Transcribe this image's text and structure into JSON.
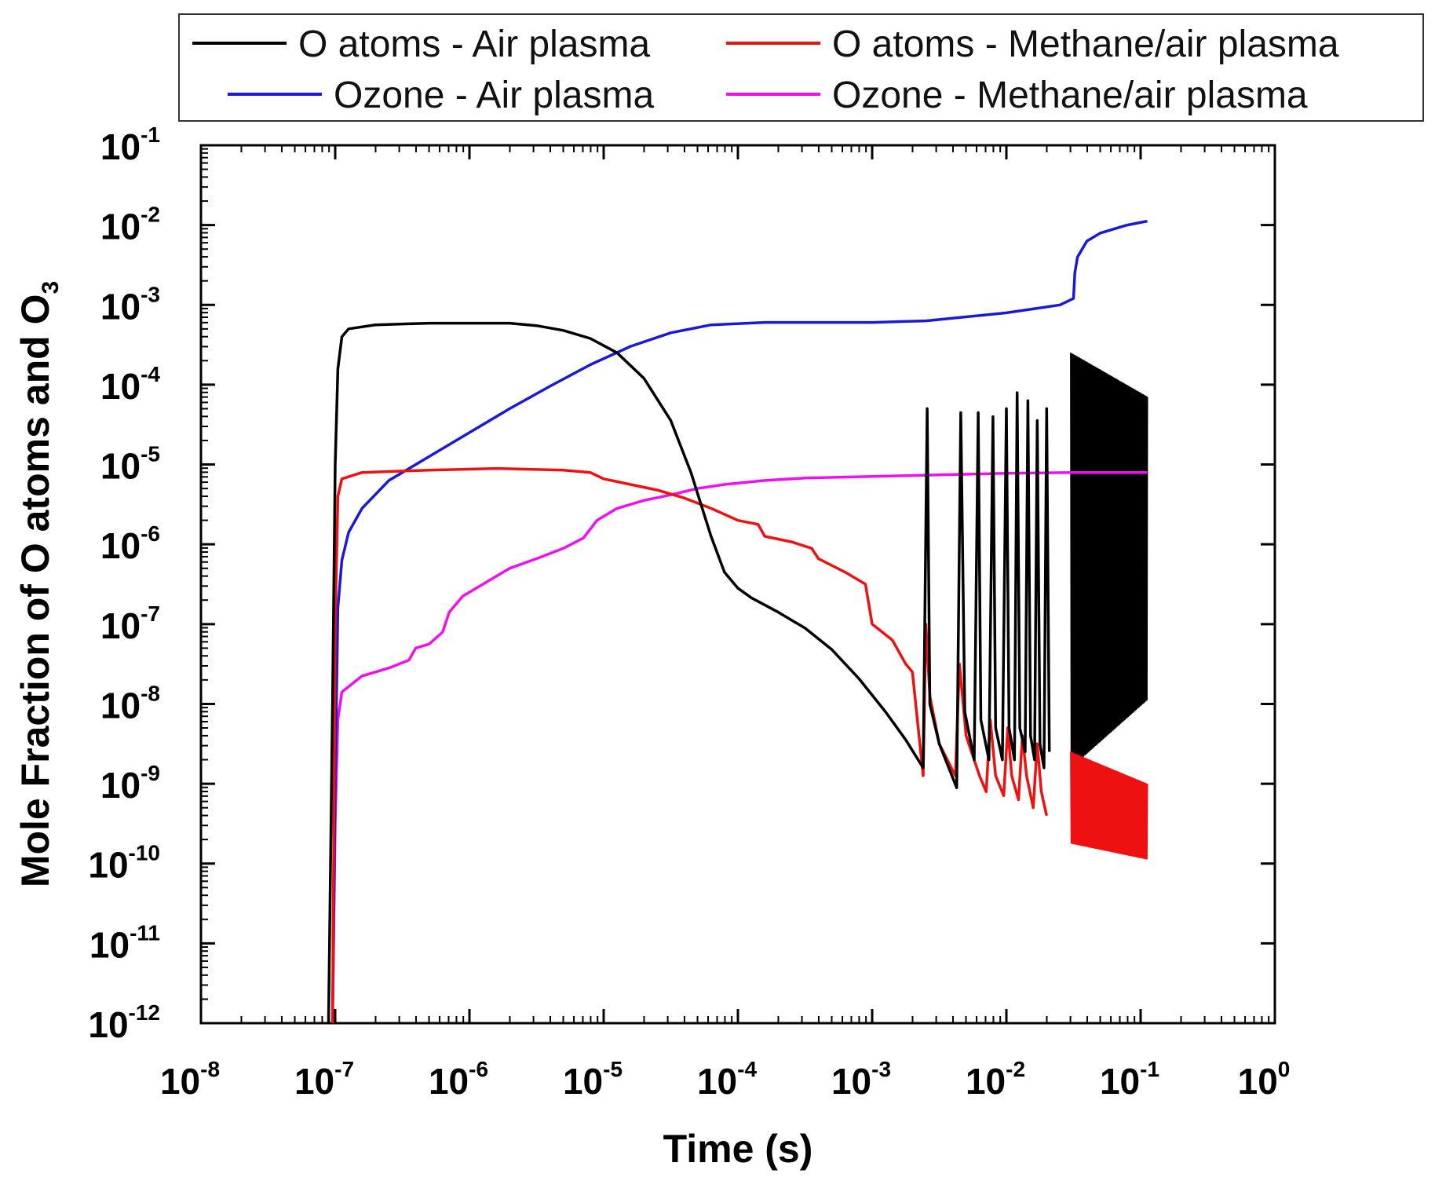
{
  "chart_data": {
    "type": "line",
    "title": "",
    "xlabel": "Time (s)",
    "ylabel_main": "Mole Fraction of O atoms and O",
    "ylabel_sub": "3",
    "x_scale": "log",
    "y_scale": "log",
    "xlim_exp": [
      -8,
      0
    ],
    "ylim_exp": [
      -12,
      -1
    ],
    "x_ticks": [
      {
        "base": "10",
        "exp": "-8"
      },
      {
        "base": "10",
        "exp": "-7"
      },
      {
        "base": "10",
        "exp": "-6"
      },
      {
        "base": "10",
        "exp": "-5"
      },
      {
        "base": "10",
        "exp": "-4"
      },
      {
        "base": "10",
        "exp": "-3"
      },
      {
        "base": "10",
        "exp": "-2"
      },
      {
        "base": "10",
        "exp": "-1"
      },
      {
        "base": "10",
        "exp": "0"
      }
    ],
    "y_ticks": [
      {
        "base": "10",
        "exp": "-12"
      },
      {
        "base": "10",
        "exp": "-11"
      },
      {
        "base": "10",
        "exp": "-10"
      },
      {
        "base": "10",
        "exp": "-9"
      },
      {
        "base": "10",
        "exp": "-8"
      },
      {
        "base": "10",
        "exp": "-7"
      },
      {
        "base": "10",
        "exp": "-6"
      },
      {
        "base": "10",
        "exp": "-5"
      },
      {
        "base": "10",
        "exp": "-4"
      },
      {
        "base": "10",
        "exp": "-3"
      },
      {
        "base": "10",
        "exp": "-2"
      },
      {
        "base": "10",
        "exp": "-1"
      }
    ],
    "grid": false,
    "legend_position": "top",
    "series": [
      {
        "name": "O atoms - Air plasma",
        "color": "#000000",
        "points_log10": [
          [
            -7.05,
            -12
          ],
          [
            -7.02,
            -8
          ],
          [
            -7.0,
            -5
          ],
          [
            -6.98,
            -3.8
          ],
          [
            -6.95,
            -3.4
          ],
          [
            -6.9,
            -3.3
          ],
          [
            -6.7,
            -3.25
          ],
          [
            -6.3,
            -3.23
          ],
          [
            -6.0,
            -3.23
          ],
          [
            -5.7,
            -3.23
          ],
          [
            -5.5,
            -3.26
          ],
          [
            -5.3,
            -3.32
          ],
          [
            -5.1,
            -3.42
          ],
          [
            -4.9,
            -3.6
          ],
          [
            -4.7,
            -3.92
          ],
          [
            -4.5,
            -4.45
          ],
          [
            -4.35,
            -5.1
          ],
          [
            -4.2,
            -5.9
          ],
          [
            -4.1,
            -6.35
          ],
          [
            -4.0,
            -6.55
          ],
          [
            -3.9,
            -6.67
          ],
          [
            -3.7,
            -6.85
          ],
          [
            -3.5,
            -7.05
          ],
          [
            -3.3,
            -7.32
          ],
          [
            -3.1,
            -7.68
          ],
          [
            -2.9,
            -8.1
          ],
          [
            -2.75,
            -8.45
          ],
          [
            -2.62,
            -8.8
          ],
          [
            -2.59,
            -4.3
          ],
          [
            -2.57,
            -8.0
          ],
          [
            -2.5,
            -8.5
          ],
          [
            -2.37,
            -9.05
          ],
          [
            -2.34,
            -4.35
          ],
          [
            -2.31,
            -8.1
          ],
          [
            -2.24,
            -8.7
          ],
          [
            -2.21,
            -4.35
          ],
          [
            -2.19,
            -8.2
          ],
          [
            -2.13,
            -8.7
          ],
          [
            -2.1,
            -4.4
          ],
          [
            -2.08,
            -8.3
          ],
          [
            -2.03,
            -8.7
          ],
          [
            -2.0,
            -4.3
          ],
          [
            -1.98,
            -8.3
          ],
          [
            -1.94,
            -8.7
          ],
          [
            -1.92,
            -4.1
          ],
          [
            -1.9,
            -8.3
          ],
          [
            -1.86,
            -8.6
          ],
          [
            -1.84,
            -4.2
          ],
          [
            -1.82,
            -8.4
          ],
          [
            -1.79,
            -8.7
          ],
          [
            -1.77,
            -4.45
          ],
          [
            -1.75,
            -8.5
          ],
          [
            -1.72,
            -8.8
          ],
          [
            -1.7,
            -4.3
          ],
          [
            -1.68,
            -8.6
          ]
        ]
      },
      {
        "name": "O atoms - Methane/air plasma",
        "color": "#ee1111",
        "points_log10": [
          [
            -7.02,
            -12
          ],
          [
            -7.0,
            -7
          ],
          [
            -6.98,
            -5.4
          ],
          [
            -6.95,
            -5.18
          ],
          [
            -6.8,
            -5.1
          ],
          [
            -6.3,
            -5.07
          ],
          [
            -5.8,
            -5.05
          ],
          [
            -5.3,
            -5.07
          ],
          [
            -5.1,
            -5.1
          ],
          [
            -5.0,
            -5.18
          ],
          [
            -4.8,
            -5.25
          ],
          [
            -4.6,
            -5.32
          ],
          [
            -4.4,
            -5.42
          ],
          [
            -4.2,
            -5.55
          ],
          [
            -4.0,
            -5.7
          ],
          [
            -3.85,
            -5.75
          ],
          [
            -3.8,
            -5.9
          ],
          [
            -3.6,
            -5.97
          ],
          [
            -3.45,
            -6.05
          ],
          [
            -3.4,
            -6.18
          ],
          [
            -3.2,
            -6.35
          ],
          [
            -3.05,
            -6.5
          ],
          [
            -3.0,
            -7.0
          ],
          [
            -2.85,
            -7.2
          ],
          [
            -2.75,
            -7.5
          ],
          [
            -2.7,
            -7.6
          ],
          [
            -2.62,
            -8.9
          ],
          [
            -2.6,
            -7.0
          ],
          [
            -2.57,
            -7.9
          ],
          [
            -2.5,
            -8.5
          ],
          [
            -2.38,
            -8.9
          ],
          [
            -2.35,
            -7.5
          ],
          [
            -2.3,
            -8.4
          ],
          [
            -2.2,
            -8.9
          ],
          [
            -2.15,
            -9.1
          ],
          [
            -2.12,
            -8.2
          ],
          [
            -2.08,
            -8.9
          ],
          [
            -2.02,
            -9.15
          ],
          [
            -1.99,
            -8.3
          ],
          [
            -1.96,
            -8.9
          ],
          [
            -1.91,
            -9.2
          ],
          [
            -1.88,
            -8.4
          ],
          [
            -1.85,
            -8.9
          ],
          [
            -1.8,
            -9.3
          ],
          [
            -1.77,
            -8.5
          ],
          [
            -1.74,
            -9.1
          ],
          [
            -1.7,
            -9.4
          ]
        ]
      },
      {
        "name": "Ozone - Air plasma",
        "color": "#1a1ad6",
        "points_log10": [
          [
            -7.02,
            -12
          ],
          [
            -7.0,
            -9
          ],
          [
            -6.98,
            -6.8
          ],
          [
            -6.95,
            -6.2
          ],
          [
            -6.9,
            -5.85
          ],
          [
            -6.8,
            -5.55
          ],
          [
            -6.6,
            -5.2
          ],
          [
            -6.3,
            -4.9
          ],
          [
            -6.0,
            -4.6
          ],
          [
            -5.7,
            -4.3
          ],
          [
            -5.4,
            -4.02
          ],
          [
            -5.1,
            -3.75
          ],
          [
            -4.8,
            -3.52
          ],
          [
            -4.5,
            -3.35
          ],
          [
            -4.2,
            -3.25
          ],
          [
            -3.8,
            -3.22
          ],
          [
            -3.4,
            -3.22
          ],
          [
            -3.0,
            -3.22
          ],
          [
            -2.6,
            -3.2
          ],
          [
            -2.3,
            -3.15
          ],
          [
            -2.0,
            -3.1
          ],
          [
            -1.8,
            -3.05
          ],
          [
            -1.6,
            -3.0
          ],
          [
            -1.5,
            -2.92
          ],
          [
            -1.49,
            -2.6
          ],
          [
            -1.47,
            -2.4
          ],
          [
            -1.4,
            -2.2
          ],
          [
            -1.3,
            -2.1
          ],
          [
            -1.1,
            -2.0
          ],
          [
            -0.95,
            -1.95
          ]
        ]
      },
      {
        "name": "Ozone - Methane/air plasma",
        "color": "#ee11ee",
        "points_log10": [
          [
            -7.02,
            -12
          ],
          [
            -7.0,
            -9.5
          ],
          [
            -6.98,
            -8.2
          ],
          [
            -6.95,
            -7.85
          ],
          [
            -6.8,
            -7.65
          ],
          [
            -6.6,
            -7.55
          ],
          [
            -6.45,
            -7.45
          ],
          [
            -6.4,
            -7.3
          ],
          [
            -6.3,
            -7.25
          ],
          [
            -6.2,
            -7.1
          ],
          [
            -6.15,
            -6.85
          ],
          [
            -6.05,
            -6.65
          ],
          [
            -5.9,
            -6.5
          ],
          [
            -5.7,
            -6.3
          ],
          [
            -5.5,
            -6.18
          ],
          [
            -5.3,
            -6.05
          ],
          [
            -5.15,
            -5.92
          ],
          [
            -5.05,
            -5.7
          ],
          [
            -4.9,
            -5.55
          ],
          [
            -4.7,
            -5.45
          ],
          [
            -4.5,
            -5.38
          ],
          [
            -4.3,
            -5.3
          ],
          [
            -4.1,
            -5.25
          ],
          [
            -3.8,
            -5.2
          ],
          [
            -3.5,
            -5.17
          ],
          [
            -3.0,
            -5.15
          ],
          [
            -2.5,
            -5.13
          ],
          [
            -2.0,
            -5.11
          ],
          [
            -1.5,
            -5.1
          ],
          [
            -0.95,
            -5.1
          ]
        ]
      }
    ],
    "noise_bands": [
      {
        "series": "O atoms - Air plasma",
        "color": "#000000",
        "x_from_exp": -1.52,
        "x_to_exp": -0.95,
        "y_low_start_exp": -8.8,
        "y_low_end_exp": -7.95,
        "y_high_start_exp": -3.6,
        "y_high_end_exp": -4.15
      },
      {
        "series": "O atoms - Methane/air plasma",
        "color": "#ee1111",
        "x_from_exp": -1.52,
        "x_to_exp": -0.95,
        "y_low_start_exp": -9.75,
        "y_low_end_exp": -9.95,
        "y_high_start_exp": -8.6,
        "y_high_end_exp": -9.0
      }
    ]
  }
}
